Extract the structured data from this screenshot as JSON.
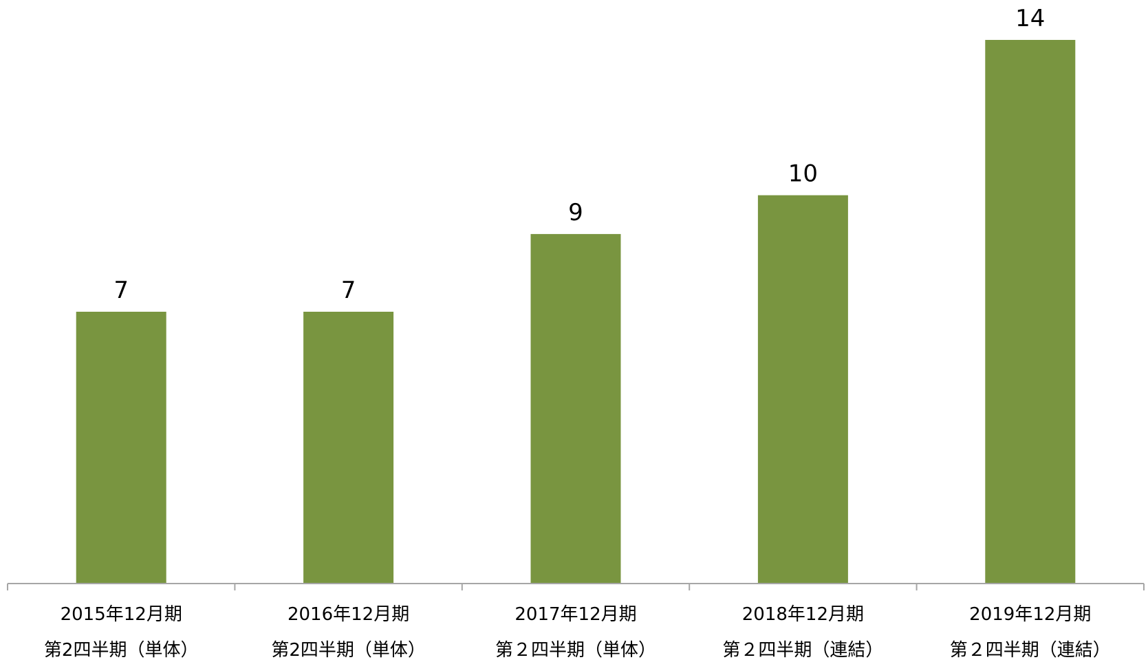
{
  "chart_data": {
    "type": "bar",
    "categories": [
      [
        "2015年12月期",
        "第2四半期（単体）"
      ],
      [
        "2016年12月期",
        "第2四半期（単体）"
      ],
      [
        "2017年12月期",
        "第２四半期（単体）"
      ],
      [
        "2018年12月期",
        "第２四半期（連結）"
      ],
      [
        "2019年12月期",
        "第２四半期（連結）"
      ]
    ],
    "values": [
      7,
      7,
      9,
      10,
      14
    ],
    "data_labels": [
      "7",
      "7",
      "9",
      "10",
      "14"
    ],
    "title": "",
    "xlabel": "",
    "ylabel": "",
    "ylim": [
      0,
      14
    ],
    "grid": false,
    "legend": "none",
    "bar_color": "#799540",
    "axis_color": "#a6a6a6"
  }
}
